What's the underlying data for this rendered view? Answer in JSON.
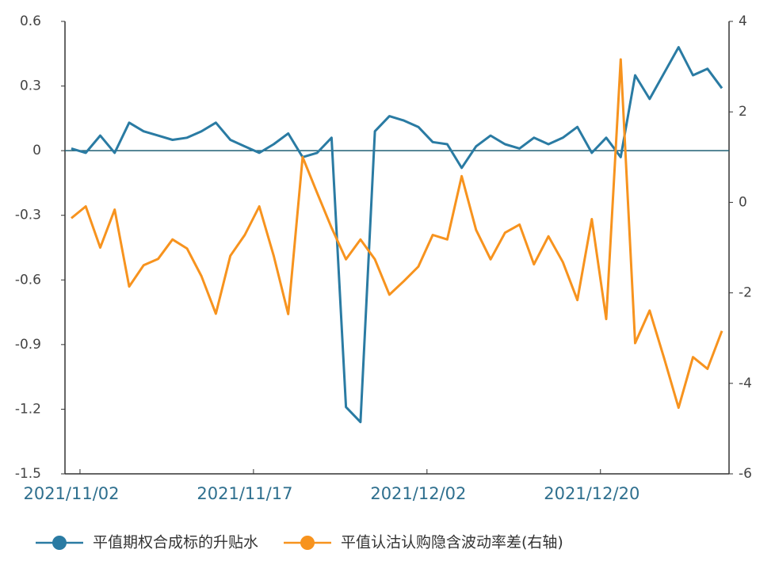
{
  "chart_data": {
    "type": "line",
    "categories": [
      "2021/11/02",
      null,
      null,
      null,
      null,
      null,
      null,
      null,
      null,
      null,
      null,
      null,
      "2021/11/17",
      null,
      null,
      null,
      null,
      null,
      null,
      null,
      null,
      null,
      null,
      null,
      "2021/12/02",
      null,
      null,
      null,
      null,
      null,
      null,
      null,
      null,
      null,
      null,
      null,
      "2021/12/20",
      null,
      null,
      null,
      null,
      null,
      null,
      null,
      null,
      null
    ],
    "series": [
      {
        "name": "平值期权合成标的升贴水",
        "color": "#2a7ba3",
        "values": [
          0.01,
          -0.01,
          0.07,
          -0.01,
          0.13,
          0.09,
          0.07,
          0.05,
          0.06,
          0.09,
          0.13,
          0.05,
          0.02,
          -0.01,
          0.03,
          0.08,
          -0.03,
          -0.01,
          0.06,
          -1.19,
          -1.26,
          0.09,
          0.16,
          0.14,
          0.11,
          0.04,
          0.03,
          -0.08,
          0.02,
          0.07,
          0.03,
          0.01,
          0.06,
          0.03,
          0.06,
          0.11,
          -0.01,
          0.06,
          -0.03,
          0.35,
          0.24,
          0.36,
          0.48,
          0.35,
          0.38,
          0.29
        ]
      },
      {
        "name": "平值认沽认购隐含波动率差(右轴)",
        "color": "#f7931e",
        "axis": "y2",
        "values": [
          -0.35,
          -0.09,
          -1.0,
          -0.16,
          -1.86,
          -1.39,
          -1.25,
          -0.82,
          -1.02,
          -1.63,
          -2.46,
          -1.18,
          -0.72,
          -0.09,
          -1.18,
          -2.47,
          1.0,
          0.21,
          -0.56,
          -1.26,
          -0.82,
          -1.26,
          -2.04,
          -1.74,
          -1.42,
          -0.72,
          -0.82,
          0.58,
          -0.61,
          -1.26,
          -0.67,
          -0.49,
          -1.37,
          -0.75,
          -1.32,
          -2.16,
          -0.37,
          -2.58,
          3.16,
          -3.11,
          -2.39,
          -3.44,
          -4.54,
          -3.42,
          -3.68,
          -2.84
        ]
      }
    ],
    "ylim": [
      -1.5,
      0.6
    ],
    "yticks": [
      0.6,
      0.3,
      0,
      -0.3,
      -0.6,
      -0.9,
      -1.2,
      -1.5
    ],
    "y2lim": [
      -6,
      4
    ],
    "y2ticks": [
      4,
      2,
      0,
      -2,
      -4,
      -6
    ],
    "zero_line": true,
    "legend": "bottom"
  }
}
